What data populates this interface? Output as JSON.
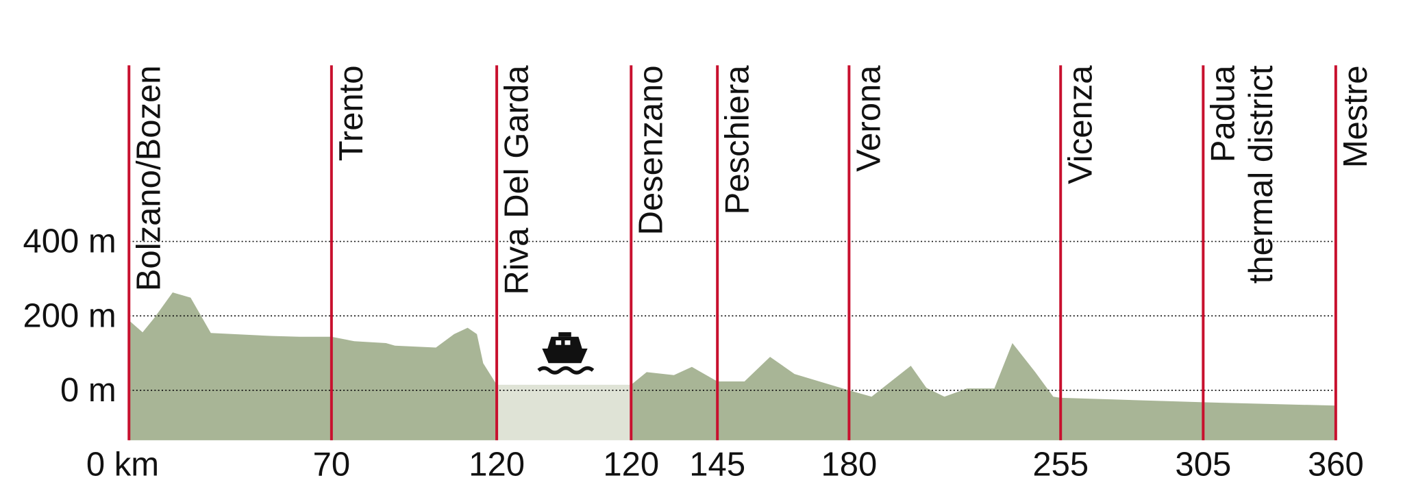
{
  "chart_data": {
    "type": "area",
    "stations": [
      {
        "name": [
          "Bolzano/Bozen"
        ],
        "km": {
          "value": 0,
          "label": "0 km"
        }
      },
      {
        "name": [
          "Trento"
        ],
        "km": 70
      },
      {
        "name": [
          "Riva Del Garda"
        ],
        "km": 120
      },
      {
        "name": [
          "Desenzano"
        ],
        "km": 120
      },
      {
        "name": [
          "Peschiera"
        ],
        "km": 145
      },
      {
        "name": [
          "Verona"
        ],
        "km": 180
      },
      {
        "name": [
          "Vicenza"
        ],
        "km": 255
      },
      {
        "name": [
          "Padua",
          "thermal district"
        ],
        "km": 305
      },
      {
        "name": [
          "Mestre"
        ],
        "km": 360
      }
    ],
    "profile": [
      {
        "x": [
          0,
          4.7,
          8.8,
          15.1,
          21.3,
          28.3,
          49.6,
          59,
          70,
          76.9,
          86.5,
          89.2,
          101.6,
          107.1,
          111.2,
          114,
          115.9,
          120
        ],
        "values": [
          188,
          156,
          195,
          263,
          249,
          154,
          146,
          144,
          144,
          132,
          127,
          120,
          115,
          151,
          168,
          151,
          73,
          15
        ]
      },
      {
        "x": [
          120,
          124.5,
          132.4,
          137.6,
          145,
          152.2,
          159,
          165.5,
          180,
          188,
          201.9,
          207.4,
          213.8,
          221.8,
          231.5,
          237.9,
          246,
          252.4,
          255,
          305,
          360
        ],
        "values": [
          15,
          49,
          41,
          63,
          24,
          24,
          90,
          44,
          0,
          -17,
          66,
          7,
          -17,
          5,
          5,
          127,
          49,
          -17,
          -20,
          -32,
          -41
        ]
      }
    ],
    "lake_level": 15,
    "color": "#a8b596",
    "lake_color": "#dfe3d6",
    "station_color": "#c8102e",
    "ylim": [
      -134,
      873
    ],
    "yticks": [
      {
        "value": 0,
        "label": "0 m"
      },
      {
        "value": 200,
        "label": "200 m"
      },
      {
        "value": 400,
        "label": "400 m"
      }
    ],
    "grid": true
  }
}
